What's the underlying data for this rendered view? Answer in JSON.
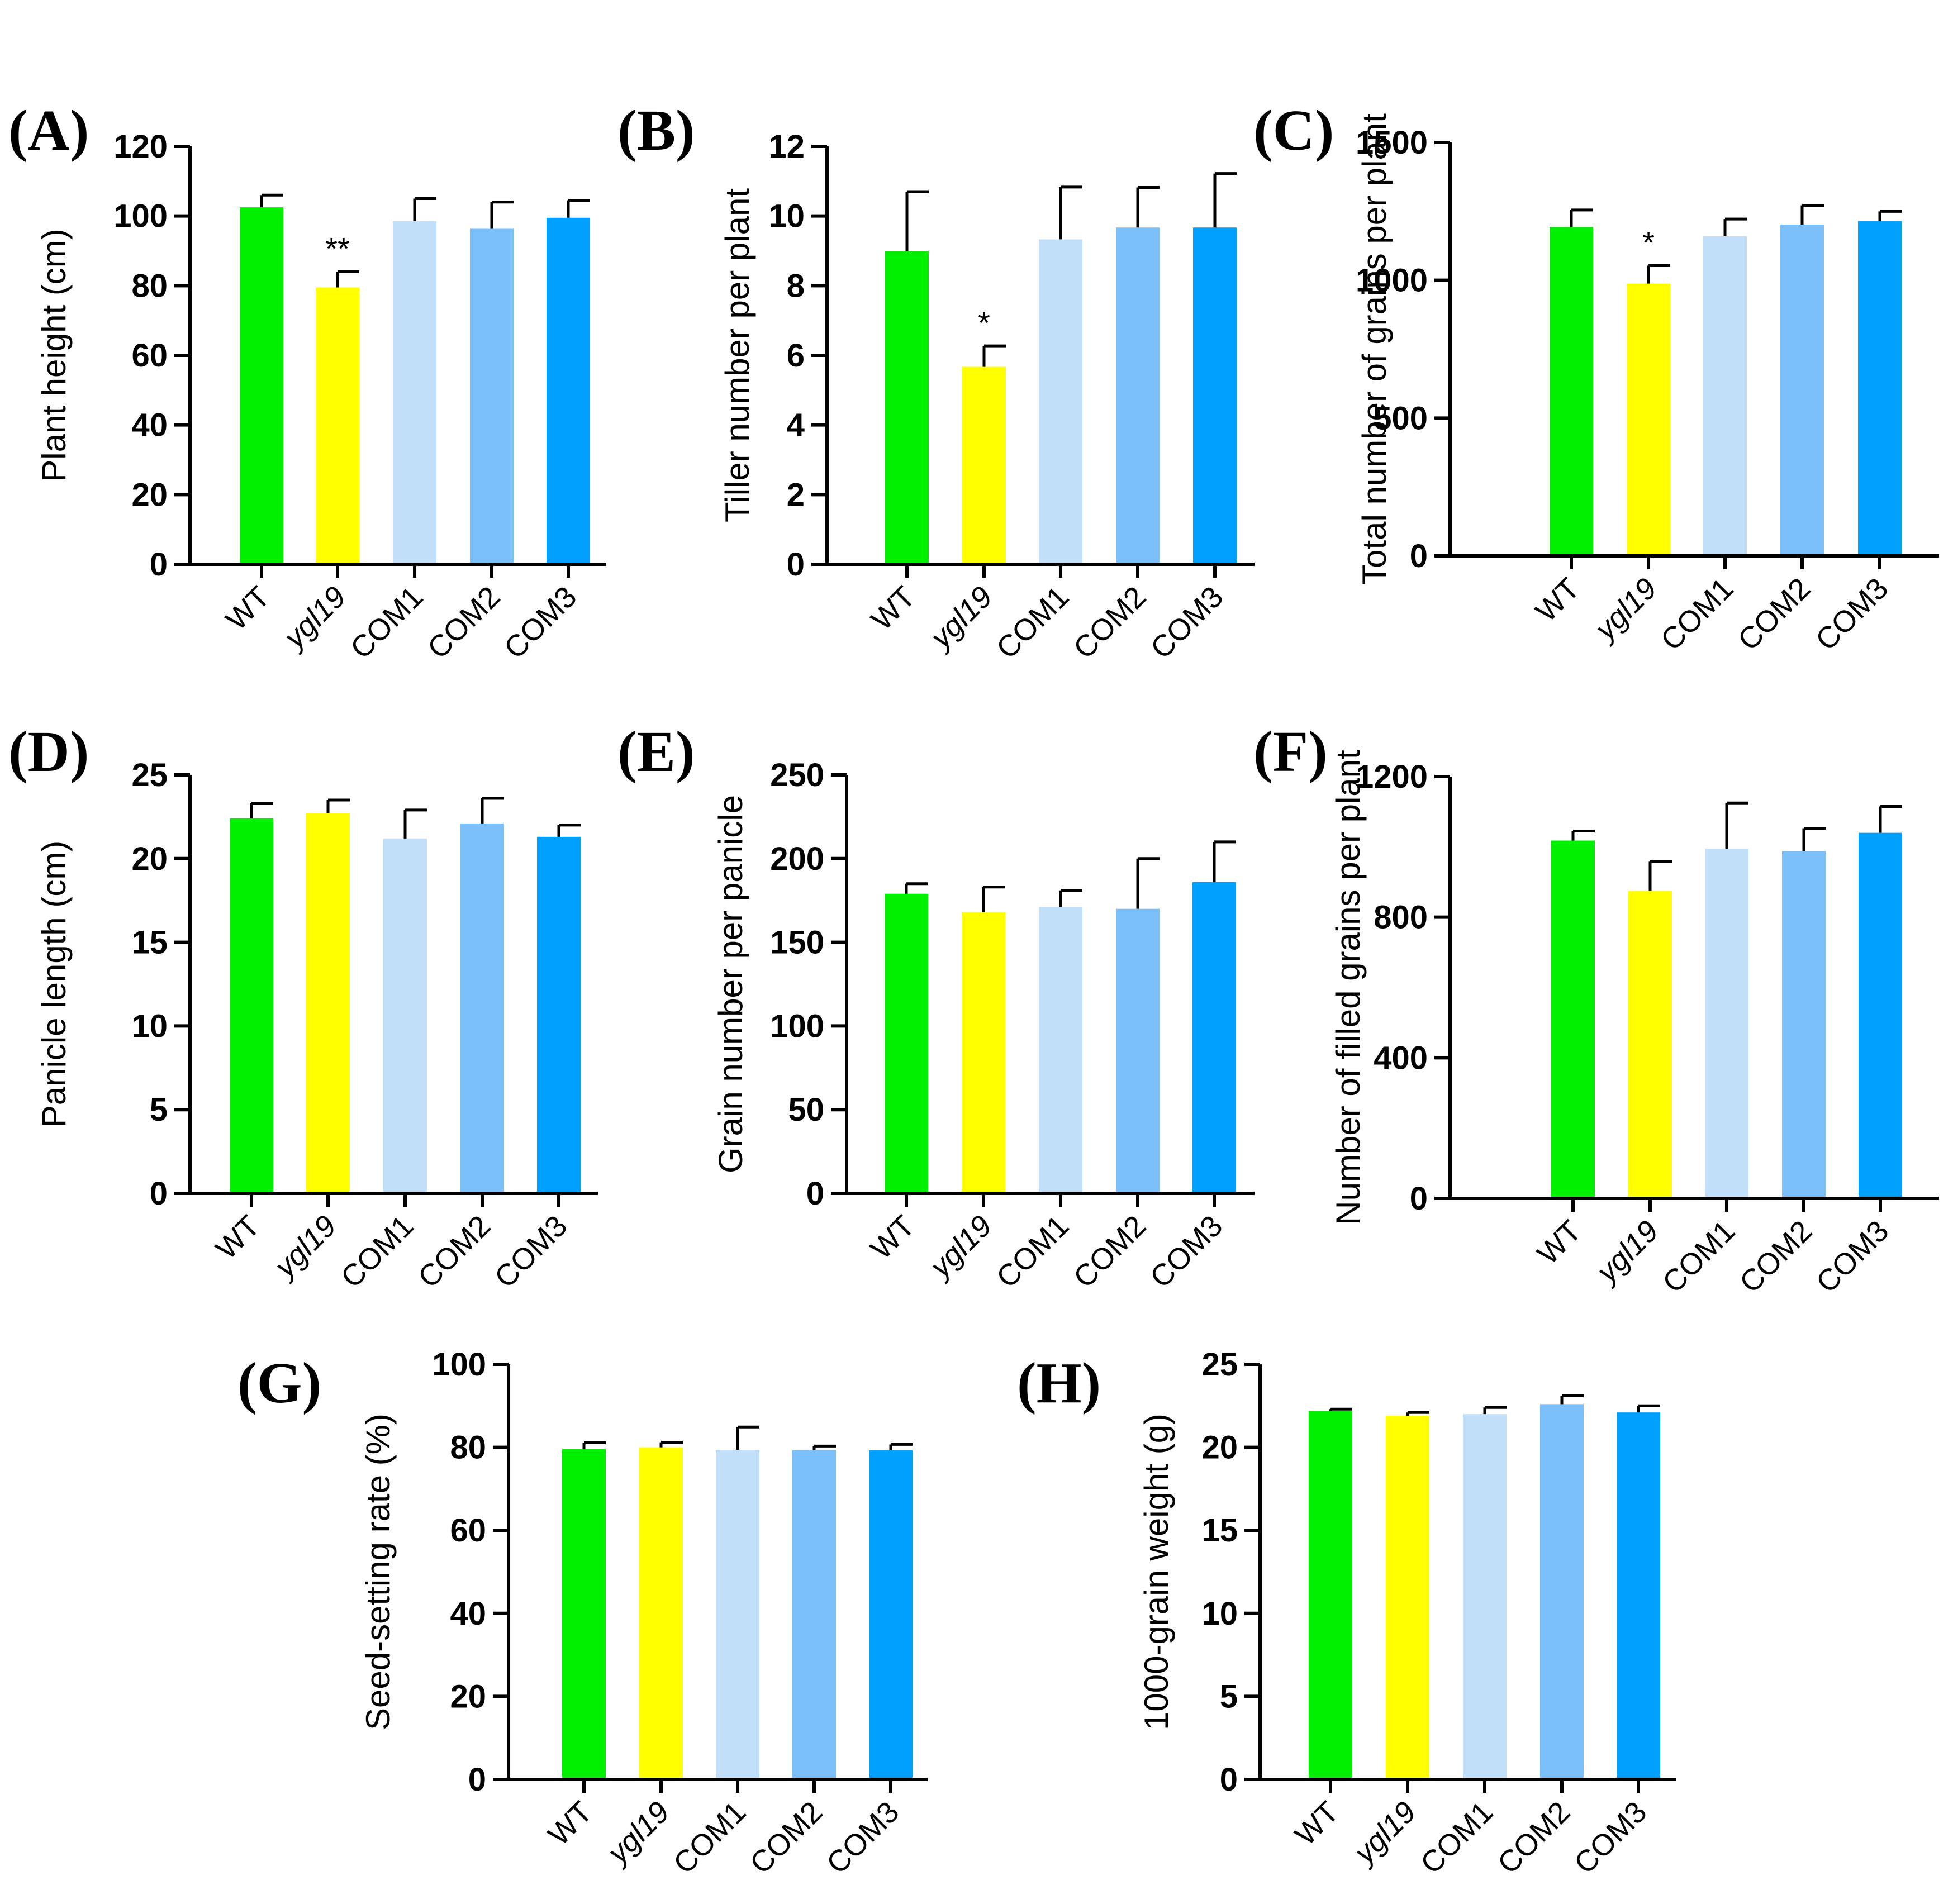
{
  "colors": {
    "WT": "#00f000",
    "ygl19": "#ffff00",
    "COM1": "#c2dffa",
    "COM2": "#7bbffb",
    "COM3": "#00a0ff"
  },
  "chart_data": [
    {
      "panel": "(A)",
      "type": "bar",
      "ylabel": "Plant height (cm)",
      "categories": [
        "WT",
        "ygl19",
        "COM1",
        "COM2",
        "COM3"
      ],
      "values": [
        102.5,
        79.5,
        98.5,
        96.5,
        99.5
      ],
      "errors": [
        3.5,
        4.5,
        6.5,
        7.5,
        5.0
      ],
      "significance": [
        "",
        "**",
        "",
        "",
        ""
      ],
      "ylim": [
        0,
        120
      ],
      "yticks": [
        "0",
        "20",
        "40",
        "60",
        "80",
        "100",
        "120"
      ]
    },
    {
      "panel": "(B)",
      "type": "bar",
      "ylabel": "Tiller number per plant",
      "categories": [
        "WT",
        "ygl19",
        "COM1",
        "COM2",
        "COM3"
      ],
      "values": [
        9.0,
        5.67,
        9.33,
        9.67,
        9.67
      ],
      "errors": [
        1.7,
        0.6,
        1.5,
        1.15,
        1.55
      ],
      "significance": [
        "",
        "*",
        "",
        "",
        ""
      ],
      "ylim": [
        0,
        12
      ],
      "yticks": [
        "0",
        "2",
        "4",
        "6",
        "8",
        "10",
        "12"
      ]
    },
    {
      "panel": "(C)",
      "type": "bar",
      "ylabel": "Total number of grains per plant",
      "categories": [
        "WT",
        "ygl19",
        "COM1",
        "COM2",
        "COM3"
      ],
      "values": [
        1193,
        988,
        1160,
        1202,
        1215
      ],
      "errors": [
        62,
        65,
        62,
        70,
        35
      ],
      "significance": [
        "",
        "*",
        "",
        "",
        ""
      ],
      "ylim": [
        0,
        1500
      ],
      "yticks": [
        "0",
        "500",
        "1000",
        "1500"
      ]
    },
    {
      "panel": "(D)",
      "type": "bar",
      "ylabel": "Panicle length (cm)",
      "categories": [
        "WT",
        "ygl19",
        "COM1",
        "COM2",
        "COM3"
      ],
      "values": [
        22.4,
        22.7,
        21.2,
        22.1,
        21.3
      ],
      "errors": [
        0.9,
        0.8,
        1.7,
        1.5,
        0.7
      ],
      "significance": [
        "",
        "",
        "",
        "",
        ""
      ],
      "ylim": [
        0,
        25
      ],
      "yticks": [
        "0",
        "5",
        "10",
        "15",
        "20",
        "25"
      ]
    },
    {
      "panel": "(E)",
      "type": "bar",
      "ylabel": "Grain number per panicle",
      "categories": [
        "WT",
        "ygl19",
        "COM1",
        "COM2",
        "COM3"
      ],
      "values": [
        179,
        168,
        171,
        170,
        186
      ],
      "errors": [
        6,
        15,
        10,
        30,
        24
      ],
      "significance": [
        "",
        "",
        "",
        "",
        ""
      ],
      "ylim": [
        0,
        250
      ],
      "yticks": [
        "0",
        "50",
        "100",
        "150",
        "200",
        "250"
      ]
    },
    {
      "panel": "(F)",
      "type": "bar",
      "ylabel": "Number of filled grains per plant",
      "categories": [
        "WT",
        "ygl19",
        "COM1",
        "COM2",
        "COM3"
      ],
      "values": [
        1018,
        875,
        995,
        988,
        1040
      ],
      "errors": [
        27,
        83,
        130,
        65,
        75
      ],
      "significance": [
        "",
        "",
        "",
        "",
        ""
      ],
      "ylim": [
        0,
        1200
      ],
      "yticks": [
        "0",
        "400",
        "800",
        "1200"
      ]
    },
    {
      "panel": "(G)",
      "type": "bar",
      "ylabel": "Seed-setting rate (%)",
      "categories": [
        "WT",
        "ygl19",
        "COM1",
        "COM2",
        "COM3"
      ],
      "values": [
        79.6,
        80.0,
        79.4,
        79.3,
        79.3
      ],
      "errors": [
        1.5,
        1.2,
        5.5,
        1.0,
        1.4
      ],
      "significance": [
        "",
        "",
        "",
        "",
        ""
      ],
      "ylim": [
        0,
        100
      ],
      "yticks": [
        "0",
        "20",
        "40",
        "60",
        "80",
        "100"
      ]
    },
    {
      "panel": "(H)",
      "type": "bar",
      "ylabel": "1000-grain weight (g)",
      "categories": [
        "WT",
        "ygl19",
        "COM1",
        "COM2",
        "COM3"
      ],
      "values": [
        22.2,
        21.9,
        22.0,
        22.6,
        22.1
      ],
      "errors": [
        0.1,
        0.2,
        0.4,
        0.5,
        0.4
      ],
      "significance": [
        "",
        "",
        "",
        "",
        ""
      ],
      "ylim": [
        0,
        25
      ],
      "yticks": [
        "0",
        "5",
        "10",
        "15",
        "20",
        "25"
      ]
    }
  ]
}
